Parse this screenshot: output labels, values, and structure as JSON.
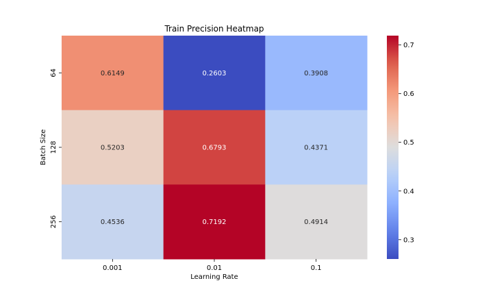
{
  "chart_data": {
    "type": "heatmap",
    "title": "Train Precision Heatmap",
    "xlabel": "Learning Rate",
    "ylabel": "Batch Size",
    "x_categories": [
      "0.001",
      "0.01",
      "0.1"
    ],
    "y_categories": [
      "64",
      "128",
      "256"
    ],
    "values": [
      [
        0.6149,
        0.2603,
        0.3908
      ],
      [
        0.5203,
        0.6793,
        0.4371
      ],
      [
        0.4536,
        0.7192,
        0.4914
      ]
    ],
    "cell_labels": [
      [
        "0.6149",
        "0.2603",
        "0.3908"
      ],
      [
        "0.5203",
        "0.6793",
        "0.4371"
      ],
      [
        "0.4536",
        "0.7192",
        "0.4914"
      ]
    ],
    "colormap": "coolwarm",
    "colorbar": {
      "range": [
        0.2603,
        0.7192
      ],
      "ticks": [
        0.3,
        0.4,
        0.5,
        0.6,
        0.7
      ],
      "tick_labels": [
        "0.3",
        "0.4",
        "0.5",
        "0.6",
        "0.7"
      ]
    }
  }
}
